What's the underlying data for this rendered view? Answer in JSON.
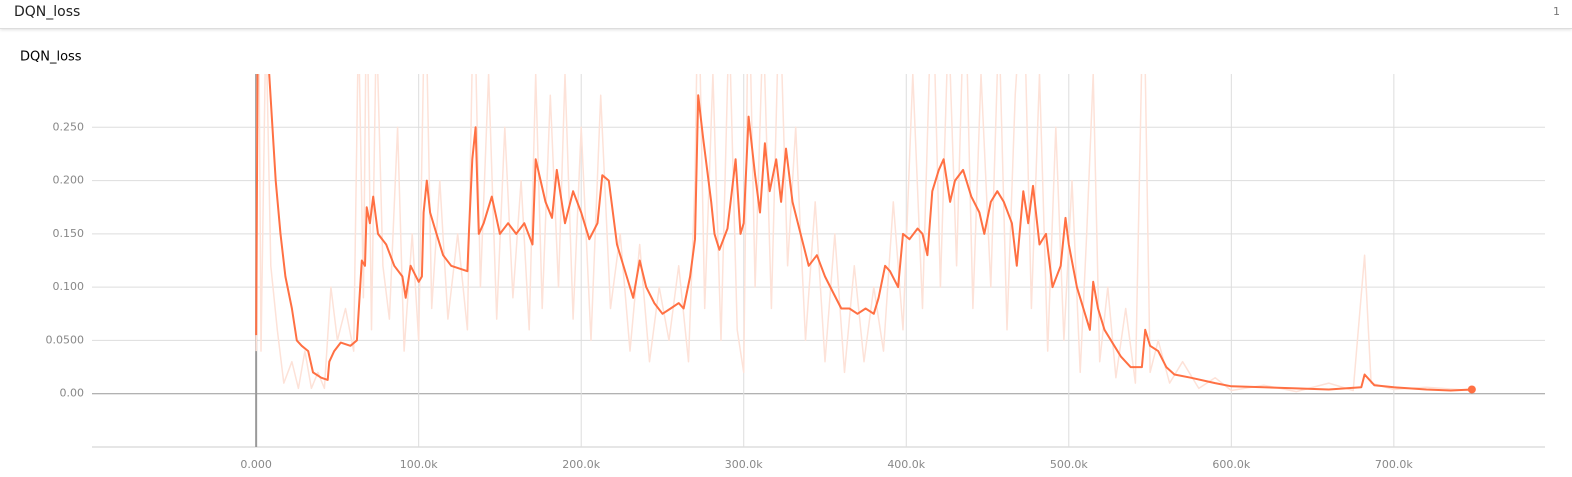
{
  "header": {
    "title": "DQN_loss",
    "count": "1"
  },
  "chart_data": {
    "type": "line",
    "title": "DQN_loss",
    "xlim": [
      -101000,
      793000
    ],
    "ylim": [
      -0.05,
      0.3
    ],
    "xticks": [
      {
        "value": 0,
        "label": "0.000"
      },
      {
        "value": 100000,
        "label": "100.0k"
      },
      {
        "value": 200000,
        "label": "200.0k"
      },
      {
        "value": 300000,
        "label": "300.0k"
      },
      {
        "value": 400000,
        "label": "400.0k"
      },
      {
        "value": 500000,
        "label": "500.0k"
      },
      {
        "value": 600000,
        "label": "600.0k"
      },
      {
        "value": 700000,
        "label": "700.0k"
      }
    ],
    "yticks": [
      {
        "value": 0,
        "label": "0.00"
      },
      {
        "value": 0.05,
        "label": "0.0500"
      },
      {
        "value": 0.1,
        "label": "0.100"
      },
      {
        "value": 0.15,
        "label": "0.150"
      },
      {
        "value": 0.2,
        "label": "0.200"
      },
      {
        "value": 0.25,
        "label": "0.250"
      }
    ],
    "grid": true,
    "series": [
      {
        "color": "#fde2d8",
        "x": [
          0,
          1000,
          3000,
          6000,
          9000,
          13000,
          17000,
          22000,
          26000,
          30000,
          34000,
          38000,
          42000,
          46000,
          50000,
          55000,
          60000,
          63000,
          66000,
          68000,
          71000,
          74000,
          78000,
          82000,
          87000,
          91000,
          96000,
          100000,
          104000,
          108000,
          113000,
          118000,
          124000,
          130000,
          134000,
          138000,
          143000,
          148000,
          153000,
          158000,
          163000,
          168000,
          172000,
          176000,
          181000,
          186000,
          190000,
          195000,
          200000,
          206000,
          212000,
          218000,
          224000,
          230000,
          236000,
          242000,
          248000,
          254000,
          260000,
          266000,
          270000,
          272000,
          276000,
          281000,
          286000,
          291000,
          296000,
          300000,
          303000,
          307000,
          312000,
          317000,
          322000,
          327000,
          332000,
          338000,
          344000,
          350000,
          356000,
          362000,
          368000,
          374000,
          380000,
          386000,
          392000,
          398000,
          404000,
          410000,
          416000,
          421000,
          426000,
          431000,
          436000,
          441000,
          446000,
          452000,
          457000,
          462000,
          467000,
          472000,
          477000,
          482000,
          487000,
          492000,
          497000,
          502000,
          507000,
          511000,
          515000,
          519000,
          524000,
          529000,
          535000,
          541000,
          546000,
          550000,
          555000,
          562000,
          570000,
          580000,
          590000,
          600000,
          620000,
          640000,
          660000,
          675000,
          682000,
          686000,
          700000,
          720000,
          748000
        ],
        "values": [
          0.04,
          0.5,
          0.04,
          0.35,
          0.12,
          0.06,
          0.01,
          0.03,
          0.005,
          0.04,
          0.005,
          0.02,
          0.005,
          0.1,
          0.05,
          0.08,
          0.04,
          0.35,
          0.09,
          0.4,
          0.06,
          0.35,
          0.12,
          0.07,
          0.25,
          0.04,
          0.15,
          0.05,
          0.4,
          0.08,
          0.2,
          0.07,
          0.15,
          0.06,
          0.4,
          0.1,
          0.3,
          0.07,
          0.25,
          0.09,
          0.2,
          0.06,
          0.3,
          0.08,
          0.28,
          0.1,
          0.3,
          0.07,
          0.25,
          0.05,
          0.28,
          0.08,
          0.15,
          0.04,
          0.14,
          0.03,
          0.1,
          0.05,
          0.12,
          0.03,
          0.2,
          0.4,
          0.08,
          0.3,
          0.05,
          0.35,
          0.06,
          0.02,
          0.4,
          0.1,
          0.35,
          0.08,
          0.38,
          0.12,
          0.25,
          0.05,
          0.18,
          0.03,
          0.15,
          0.02,
          0.12,
          0.03,
          0.1,
          0.04,
          0.18,
          0.06,
          0.3,
          0.08,
          0.4,
          0.1,
          0.35,
          0.12,
          0.4,
          0.08,
          0.3,
          0.1,
          0.35,
          0.06,
          0.28,
          0.4,
          0.08,
          0.3,
          0.04,
          0.25,
          0.05,
          0.2,
          0.02,
          0.15,
          0.3,
          0.03,
          0.1,
          0.015,
          0.08,
          0.01,
          0.4,
          0.02,
          0.05,
          0.01,
          0.03,
          0.005,
          0.015,
          0.003,
          0.008,
          0.002,
          0.01,
          0.003,
          0.13,
          0.01,
          0.004,
          0.006,
          0.003
        ]
      },
      {
        "color": "#ff7043",
        "x": [
          0,
          1000,
          8000,
          12000,
          15000,
          18000,
          22000,
          25000,
          28000,
          32000,
          35000,
          40000,
          44000,
          45000,
          48000,
          52000,
          58000,
          62000,
          65000,
          67000,
          68000,
          70000,
          72000,
          75000,
          80000,
          85000,
          90000,
          92000,
          95000,
          100000,
          102000,
          103000,
          105000,
          107000,
          110000,
          115000,
          120000,
          130000,
          131000,
          133000,
          135000,
          137000,
          140000,
          145000,
          150000,
          155000,
          160000,
          165000,
          170000,
          172000,
          175000,
          178000,
          182000,
          185000,
          188000,
          190000,
          195000,
          200000,
          205000,
          210000,
          213000,
          217000,
          222000,
          228000,
          232000,
          236000,
          240000,
          245000,
          250000,
          255000,
          260000,
          263000,
          267000,
          270000,
          272000,
          275000,
          280000,
          282000,
          285000,
          290000,
          295000,
          298000,
          300000,
          303000,
          307000,
          310000,
          313000,
          316000,
          320000,
          323000,
          326000,
          330000,
          335000,
          340000,
          345000,
          350000,
          355000,
          360000,
          365000,
          370000,
          375000,
          380000,
          383000,
          387000,
          390000,
          395000,
          398000,
          402000,
          407000,
          410000,
          413000,
          416000,
          420000,
          423000,
          427000,
          430000,
          435000,
          440000,
          445000,
          448000,
          452000,
          456000,
          460000,
          465000,
          468000,
          472000,
          475000,
          478000,
          482000,
          486000,
          490000,
          495000,
          498000,
          500000,
          505000,
          510000,
          513000,
          515000,
          518000,
          522000,
          528000,
          532000,
          538000,
          545000,
          547000,
          550000,
          555000,
          560000,
          565000,
          575000,
          590000,
          600000,
          620000,
          640000,
          660000,
          680000,
          682000,
          688000,
          700000,
          720000,
          735000,
          748000
        ],
        "values": [
          0.055,
          0.35,
          0.3,
          0.2,
          0.15,
          0.11,
          0.08,
          0.05,
          0.045,
          0.04,
          0.02,
          0.015,
          0.013,
          0.03,
          0.04,
          0.048,
          0.045,
          0.05,
          0.125,
          0.12,
          0.175,
          0.16,
          0.185,
          0.15,
          0.14,
          0.12,
          0.11,
          0.09,
          0.12,
          0.105,
          0.11,
          0.17,
          0.2,
          0.17,
          0.155,
          0.13,
          0.12,
          0.115,
          0.155,
          0.22,
          0.25,
          0.15,
          0.16,
          0.185,
          0.15,
          0.16,
          0.15,
          0.16,
          0.14,
          0.22,
          0.2,
          0.18,
          0.165,
          0.21,
          0.18,
          0.16,
          0.19,
          0.17,
          0.145,
          0.16,
          0.205,
          0.2,
          0.14,
          0.11,
          0.09,
          0.125,
          0.1,
          0.085,
          0.075,
          0.08,
          0.085,
          0.08,
          0.11,
          0.145,
          0.28,
          0.24,
          0.18,
          0.15,
          0.135,
          0.155,
          0.22,
          0.15,
          0.16,
          0.26,
          0.205,
          0.17,
          0.235,
          0.19,
          0.22,
          0.18,
          0.23,
          0.18,
          0.15,
          0.12,
          0.13,
          0.11,
          0.095,
          0.08,
          0.08,
          0.075,
          0.08,
          0.075,
          0.09,
          0.12,
          0.115,
          0.1,
          0.15,
          0.145,
          0.155,
          0.15,
          0.13,
          0.19,
          0.21,
          0.22,
          0.18,
          0.2,
          0.21,
          0.185,
          0.17,
          0.15,
          0.18,
          0.19,
          0.18,
          0.16,
          0.12,
          0.19,
          0.16,
          0.195,
          0.14,
          0.15,
          0.1,
          0.12,
          0.165,
          0.14,
          0.1,
          0.075,
          0.06,
          0.105,
          0.08,
          0.06,
          0.045,
          0.035,
          0.025,
          0.025,
          0.06,
          0.045,
          0.04,
          0.025,
          0.018,
          0.015,
          0.01,
          0.007,
          0.006,
          0.005,
          0.004,
          0.006,
          0.018,
          0.008,
          0.006,
          0.004,
          0.003,
          0.004
        ]
      }
    ]
  }
}
